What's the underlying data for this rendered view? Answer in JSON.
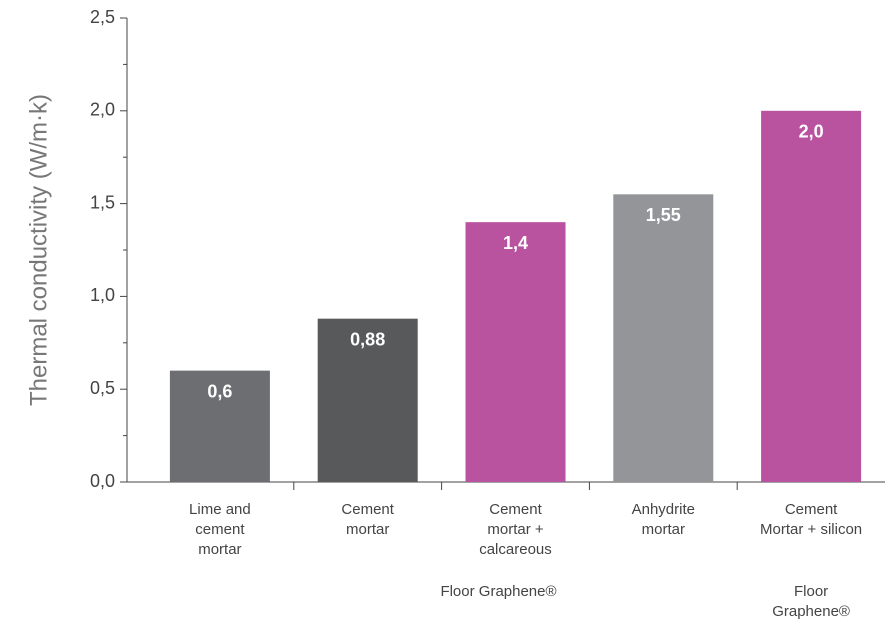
{
  "chart_data": {
    "type": "bar",
    "y_label": "Thermal conductivity (W/m·k)",
    "categories": [
      [
        "Lime and",
        "cement",
        "mortar"
      ],
      [
        "Cement",
        "mortar"
      ],
      [
        "Cement",
        "mortar +",
        "calcareous"
      ],
      [
        "Anhydrite",
        "mortar"
      ],
      [
        "Cement",
        "Mortar + silicon"
      ]
    ],
    "values": [
      0.6,
      0.88,
      1.4,
      1.55,
      2.0
    ],
    "value_labels": [
      "0,6",
      "0,88",
      "1,4",
      "1,55",
      "2,0"
    ],
    "colors": [
      "#6d6e71",
      "#58595b",
      "#b9529f",
      "#939598",
      "#b9529f"
    ],
    "annotations": [
      [
        "Floor Graphene®"
      ],
      [
        "Floor",
        "Graphene®"
      ]
    ],
    "ylim": [
      0,
      2.5
    ],
    "yticks": [
      {
        "value": 0,
        "label": "0,0"
      },
      {
        "value": 0.5,
        "label": "0,5"
      },
      {
        "value": 1,
        "label": "1,0"
      },
      {
        "value": 1.5,
        "label": "1,5"
      },
      {
        "value": 2,
        "label": "2,0"
      },
      {
        "value": 2.5,
        "label": "2,5"
      }
    ],
    "minor_yticks": [
      0.25,
      0.75,
      1.25,
      1.75,
      2.25
    ],
    "grid": false
  }
}
